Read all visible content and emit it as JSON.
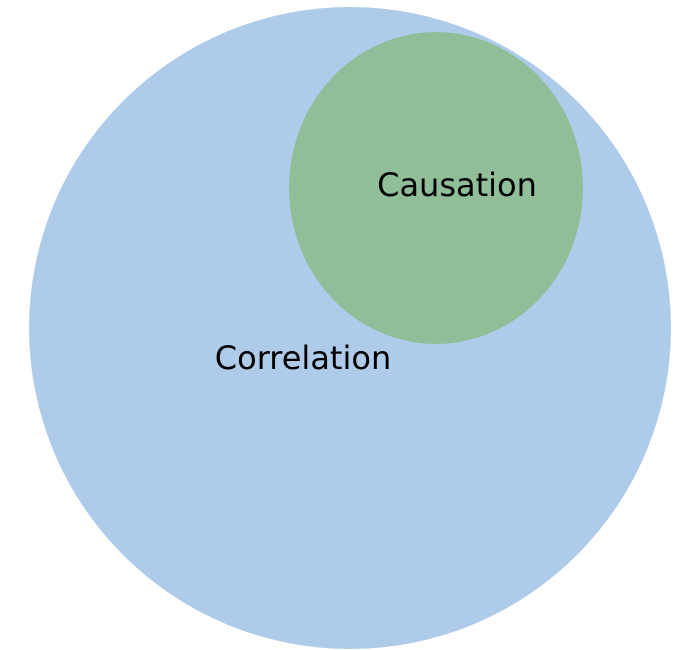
{
  "nodes": [
    {
      "label": "Correlation"
    },
    {
      "label": "Causation"
    }
  ]
}
